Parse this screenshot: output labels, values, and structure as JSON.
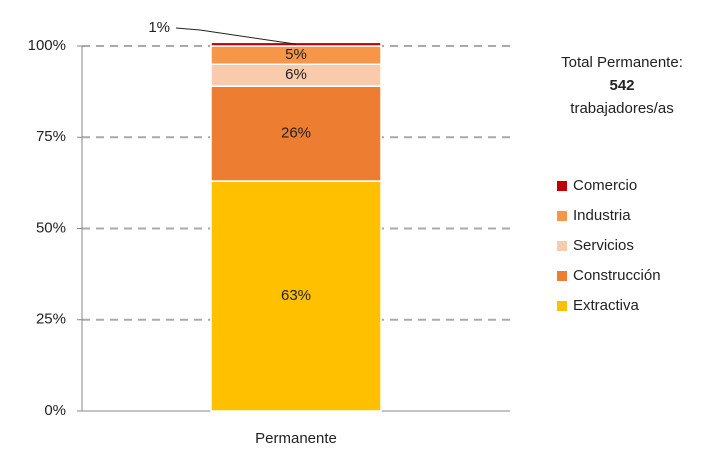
{
  "chart_data": {
    "type": "stacked_bar",
    "categories": [
      "Permanente"
    ],
    "series": [
      {
        "name": "Extractiva",
        "color": "#ffc000",
        "values": [
          63
        ],
        "value_labels": [
          "63%"
        ]
      },
      {
        "name": "Construcción",
        "color": "#ed7d31",
        "values": [
          26
        ],
        "value_labels": [
          "26%"
        ]
      },
      {
        "name": "Servicios",
        "color": "#f8cbad",
        "values": [
          6
        ],
        "value_labels": [
          "6%"
        ]
      },
      {
        "name": "Industria",
        "color": "#f79646",
        "values": [
          5
        ],
        "value_labels": [
          "5%"
        ]
      },
      {
        "name": "Comercio",
        "color": "#c00000",
        "values": [
          1
        ],
        "value_labels": [
          "1%"
        ]
      }
    ],
    "ylim": [
      0,
      100
    ],
    "yticks": [
      {
        "value": 0,
        "label": "0%"
      },
      {
        "value": 25,
        "label": "25%"
      },
      {
        "value": 50,
        "label": "50%"
      },
      {
        "value": 75,
        "label": "75%"
      },
      {
        "value": 100,
        "label": "100%"
      }
    ],
    "grid": true,
    "legend": "right",
    "annotation": {
      "label": "Total Permanente:",
      "value": 542,
      "unit": "trabajadores/as"
    }
  }
}
